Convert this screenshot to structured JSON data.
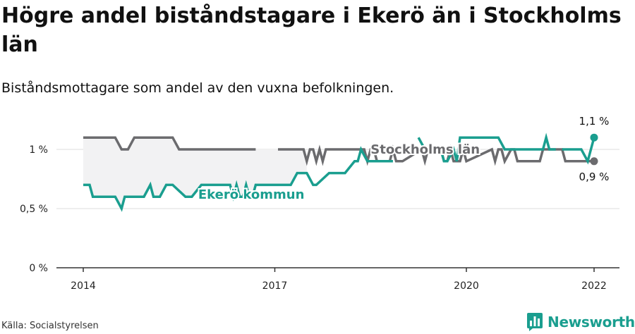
{
  "title": "Högre andel biståndstagare i Ekerö än i Stockholms län",
  "subtitle": "Biståndsmottagare som andel av den vuxna befolkningen.",
  "source": "Källa: Socialstyrelsen",
  "brand": {
    "name": "Newsworthy",
    "logo_icon": "bar-chart-logo-icon"
  },
  "colors": {
    "ekero": "#1a9e8f",
    "stockholm": "#6b6b6e",
    "fill": "#f2f2f3",
    "grid": "#dcdcdc",
    "axis": "#333333"
  },
  "chart_data": {
    "type": "line",
    "xlabel": "",
    "ylabel": "",
    "xlim": [
      2014,
      2022.5
    ],
    "ylim": [
      0,
      1.2
    ],
    "x_ticks": [
      2014,
      2017,
      2020,
      2022
    ],
    "x_tick_labels": [
      "2014",
      "2017",
      "2020",
      "2022"
    ],
    "y_ticks": [
      0,
      0.5,
      1
    ],
    "y_tick_labels": [
      "0 %",
      "0,5 %",
      "1 %"
    ],
    "grid": true,
    "fill_between": true,
    "series": [
      {
        "name": "Stockholms län",
        "color": "#6b6b6e",
        "x": [
          2014,
          2014.2,
          2014.5,
          2014.6,
          2014.7,
          2014.8,
          2015.4,
          2015.5,
          2016.7,
          null,
          2017.05,
          2017.45,
          2017.5,
          2017.55,
          2017.6,
          2017.65,
          2017.7,
          2017.75,
          2017.8,
          2018.0,
          2018.4,
          2018.45,
          2018.5,
          2018.55,
          2018.6,
          2018.8,
          2018.85,
          2018.9,
          2019.0,
          2019.3,
          2019.35,
          2019.4,
          2019.45,
          2019.5,
          2019.6,
          2019.65,
          2019.7,
          2019.75,
          2019.8,
          2019.9,
          2019.95,
          2020.0,
          2020.4,
          2020.45,
          2020.5,
          2020.55,
          2020.6,
          2020.7,
          2020.75,
          2020.8,
          2021.0,
          2021.15,
          2021.2,
          2021.5,
          2021.55,
          2021.6,
          2021.7,
          2021.75,
          2021.8,
          2022.0
        ],
        "y": [
          1.1,
          1.1,
          1.1,
          1.0,
          1.0,
          1.1,
          1.1,
          1.0,
          1.0,
          null,
          1.0,
          1.0,
          0.9,
          1.0,
          1.0,
          0.9,
          1.0,
          0.9,
          1.0,
          1.0,
          1.0,
          0.9,
          1.0,
          1.0,
          0.9,
          0.9,
          1.0,
          0.9,
          0.9,
          1.0,
          0.9,
          1.0,
          1.0,
          1.0,
          1.0,
          0.9,
          0.9,
          1.0,
          0.9,
          0.9,
          1.0,
          0.9,
          1.0,
          0.9,
          1.0,
          1.0,
          0.9,
          1.0,
          1.0,
          0.9,
          0.9,
          0.9,
          1.0,
          1.0,
          0.9,
          0.9,
          0.9,
          0.9,
          0.9,
          0.9
        ]
      },
      {
        "name": "Ekerö kommun",
        "color": "#1a9e8f",
        "x": [
          2014,
          2014.1,
          2014.15,
          2014.5,
          2014.55,
          2014.6,
          2014.65,
          2014.95,
          2015.05,
          2015.1,
          2015.2,
          2015.3,
          2015.4,
          2015.6,
          2015.7,
          2015.85,
          2015.95,
          2016.3,
          2016.35,
          2016.4,
          2016.45,
          2016.5,
          2016.55,
          2016.6,
          2016.65,
          2016.7,
          2016.75,
          2016.8,
          2017.1,
          2017.25,
          2017.35,
          2017.45,
          2017.5,
          2017.6,
          2017.65,
          2017.85,
          2017.9,
          2018.05,
          2018.1,
          2018.25,
          2018.3,
          2018.35,
          2018.45,
          2018.5,
          2018.6,
          2018.85,
          null,
          2019.25,
          2019.3,
          2019.35,
          null,
          2019.55,
          2019.6,
          2019.65,
          2019.7,
          2019.8,
          2019.85,
          2019.9,
          2020.0,
          2020.1,
          2020.5,
          2020.6,
          2020.8,
          2021.2,
          2021.25,
          2021.3,
          2021.4,
          null,
          2021.5,
          2021.8,
          2021.9,
          2022.0
        ],
        "y": [
          0.7,
          0.7,
          0.6,
          0.6,
          0.55,
          0.5,
          0.6,
          0.6,
          0.7,
          0.6,
          0.6,
          0.7,
          0.7,
          0.6,
          0.6,
          0.7,
          0.7,
          0.7,
          0.6,
          0.7,
          0.6,
          0.6,
          0.7,
          0.6,
          0.6,
          0.7,
          0.7,
          0.7,
          0.7,
          0.7,
          0.8,
          0.8,
          0.8,
          0.7,
          0.7,
          0.8,
          0.8,
          0.8,
          0.8,
          0.9,
          0.9,
          1.0,
          0.9,
          0.9,
          0.9,
          0.9,
          null,
          1.1,
          1.05,
          1.0,
          null,
          1.0,
          1.0,
          0.9,
          0.9,
          1.0,
          0.9,
          1.1,
          1.1,
          1.1,
          1.1,
          1.0,
          1.0,
          1.0,
          1.1,
          1.0,
          1.0,
          null,
          1.0,
          1.0,
          0.9,
          1.1
        ]
      }
    ],
    "series_labels": [
      {
        "series": "Stockholms län",
        "text": "Stockholms län",
        "x": 2018.5,
        "y": 1.0
      },
      {
        "series": "Ekerö kommun",
        "text": "Ekerö kommun",
        "x": 2015.8,
        "y": 0.62
      }
    ],
    "end_labels": [
      {
        "series": "Ekerö kommun",
        "text": "1,1 %",
        "x": 2022,
        "y": 1.1
      },
      {
        "series": "Stockholms län",
        "text": "0,9 %",
        "x": 2022,
        "y": 0.9
      }
    ]
  }
}
